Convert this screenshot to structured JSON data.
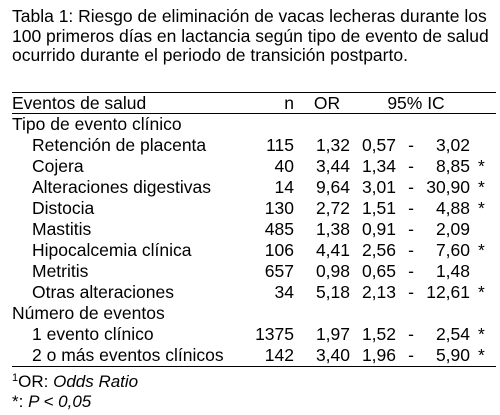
{
  "caption": "Tabla 1: Riesgo de eliminación de vacas lecheras durante los 100 primeros días en lactancia según tipo de evento de salud ocurrido durante el periodo de transición postparto.",
  "header": {
    "label": "Eventos de salud",
    "n": "n",
    "or": "OR",
    "ci": "95% IC"
  },
  "group1": {
    "title": "Tipo de evento clínico",
    "rows": [
      {
        "label": "Retención de placenta",
        "n": "115",
        "or": "1,32",
        "lo": "0,57",
        "dash": "-",
        "hi": "3,02",
        "sig": ""
      },
      {
        "label": "Cojera",
        "n": "40",
        "or": "3,44",
        "lo": "1,34",
        "dash": "-",
        "hi": "8,85",
        "sig": "*"
      },
      {
        "label": "Alteraciones digestivas",
        "n": "14",
        "or": "9,64",
        "lo": "3,01",
        "dash": "-",
        "hi": "30,90",
        "sig": "*"
      },
      {
        "label": "Distocia",
        "n": "130",
        "or": "2,72",
        "lo": "1,51",
        "dash": "-",
        "hi": "4,88",
        "sig": "*"
      },
      {
        "label": "Mastitis",
        "n": "485",
        "or": "1,38",
        "lo": "0,91",
        "dash": "-",
        "hi": "2,09",
        "sig": ""
      },
      {
        "label": "Hipocalcemia clínica",
        "n": "106",
        "or": "4,41",
        "lo": "2,56",
        "dash": "-",
        "hi": "7,60",
        "sig": "*"
      },
      {
        "label": "Metritis",
        "n": "657",
        "or": "0,98",
        "lo": "0,65",
        "dash": "-",
        "hi": "1,48",
        "sig": ""
      },
      {
        "label": "Otras alteraciones",
        "n": "34",
        "or": "5,18",
        "lo": "2,13",
        "dash": "-",
        "hi": "12,61",
        "sig": "*"
      }
    ]
  },
  "group2": {
    "title": "Número de eventos",
    "rows": [
      {
        "label": "1 evento clínico",
        "n": "1375",
        "or": "1,97",
        "lo": "1,52",
        "dash": "-",
        "hi": "2,54",
        "sig": "*"
      },
      {
        "label": "2 o más eventos clínicos",
        "n": "142",
        "or": "3,40",
        "lo": "1,96",
        "dash": "-",
        "hi": "5,90",
        "sig": "*"
      }
    ]
  },
  "footnotes": {
    "or_sup": "1",
    "or_label": "OR:",
    "or_text": "Odds Ratio",
    "sig_label": "*:",
    "sig_text": "P < 0,05"
  }
}
